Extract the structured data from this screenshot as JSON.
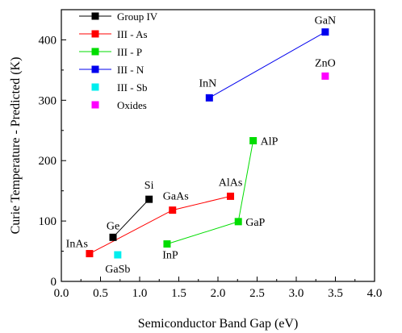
{
  "chart_data": {
    "type": "scatter",
    "xlabel": "Semiconductor Band Gap (eV)",
    "ylabel": "Curie Temperature - Predicted (K)",
    "xlim": [
      0.0,
      4.0
    ],
    "ylim": [
      0,
      450
    ],
    "x_ticks": [
      "0.0",
      "0.5",
      "1.0",
      "1.5",
      "2.0",
      "2.5",
      "3.0",
      "3.5",
      "4.0"
    ],
    "y_ticks": [
      "0",
      "100",
      "200",
      "300",
      "400"
    ],
    "grid": false,
    "legend_position": "top-left",
    "series": [
      {
        "name": "Group IV",
        "color": "#000000",
        "connected": true,
        "points": [
          {
            "label": "Ge",
            "x": 0.66,
            "y": 73
          },
          {
            "label": "Si",
            "x": 1.12,
            "y": 136
          }
        ]
      },
      {
        "name": "III - As",
        "color": "#ff0000",
        "connected": true,
        "points": [
          {
            "label": "InAs",
            "x": 0.36,
            "y": 46
          },
          {
            "label": "GaAs",
            "x": 1.42,
            "y": 118
          },
          {
            "label": "AlAs",
            "x": 2.16,
            "y": 141
          }
        ]
      },
      {
        "name": "III - P",
        "color": "#00dd00",
        "connected": true,
        "points": [
          {
            "label": "InP",
            "x": 1.35,
            "y": 62
          },
          {
            "label": "GaP",
            "x": 2.26,
            "y": 99
          },
          {
            "label": "AlP",
            "x": 2.45,
            "y": 233
          }
        ]
      },
      {
        "name": "III - N",
        "color": "#0000ee",
        "connected": true,
        "points": [
          {
            "label": "InN",
            "x": 1.89,
            "y": 304
          },
          {
            "label": "GaN",
            "x": 3.37,
            "y": 413
          }
        ]
      },
      {
        "name": "III - Sb",
        "color": "#00eeee",
        "connected": false,
        "points": [
          {
            "label": "GaSb",
            "x": 0.72,
            "y": 44
          }
        ]
      },
      {
        "name": "Oxides",
        "color": "#ff00ff",
        "connected": false,
        "points": [
          {
            "label": "ZnO",
            "x": 3.37,
            "y": 340
          }
        ]
      }
    ]
  }
}
